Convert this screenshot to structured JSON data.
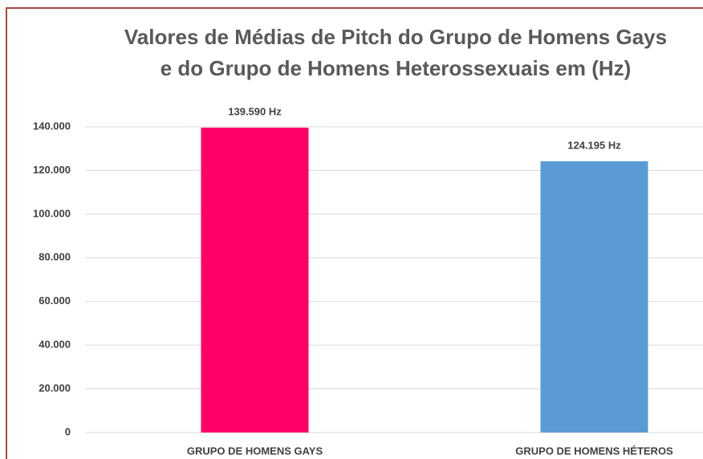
{
  "chart_data": {
    "type": "bar",
    "title": [
      "Valores de Médias de Pitch do Grupo de Homens Gays",
      "e do Grupo de Homens Heterossexuais em (Hz)"
    ],
    "categories": [
      "GRUPO DE HOMENS GAYS",
      "GRUPO DE HOMENS HÉTEROS"
    ],
    "values": [
      139.59,
      124.195
    ],
    "value_labels": [
      "139.590 Hz",
      "124.195 Hz"
    ],
    "colors": [
      "#ff0066",
      "#5b9bd5"
    ],
    "ylim": [
      0,
      140
    ],
    "yticks": [
      0,
      {
        "value": 20,
        "label": "20.000"
      },
      {
        "value": 40,
        "label": "40.000"
      },
      {
        "value": 60,
        "label": "60.000"
      },
      {
        "value": 80,
        "label": "80.000"
      },
      {
        "value": 100,
        "label": "100.000"
      },
      {
        "value": 120,
        "label": "120.000"
      },
      {
        "value": 140,
        "label": "140.000"
      }
    ],
    "grid": true
  }
}
